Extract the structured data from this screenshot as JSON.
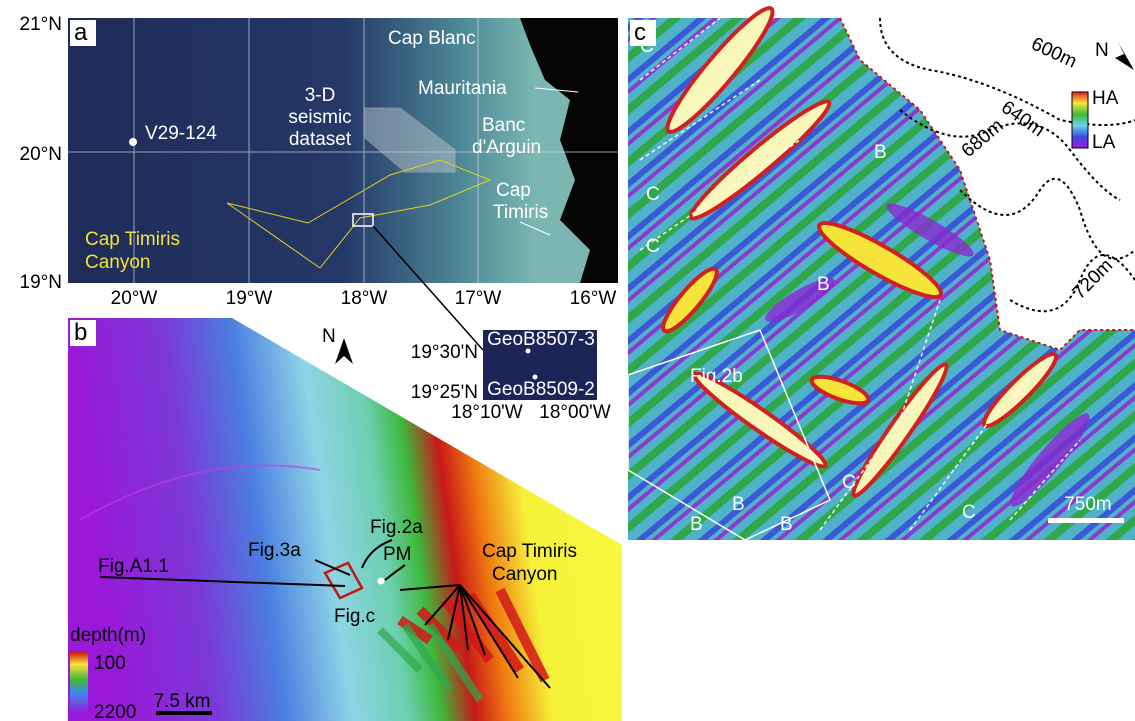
{
  "panel_a": {
    "label": "a",
    "lat_labels": [
      "21°N",
      "20°N",
      "19°N"
    ],
    "lon_labels": [
      "20°W",
      "19°W",
      "18°W",
      "17°W",
      "16°W"
    ],
    "core_site": "V29-124",
    "seismic_dataset": [
      "3-D",
      "seismic",
      "dataset"
    ],
    "cap_blanc": "Cap Blanc",
    "mauritania": "Mauritania",
    "banc_darguin": [
      "Banc",
      "d'Arguin"
    ],
    "cap_timiris": [
      "Cap",
      "Timiris"
    ],
    "canyon": [
      "Cap Timiris",
      "Canyon"
    ]
  },
  "inset": {
    "lat_labels": [
      "19°30'N",
      "19°25'N"
    ],
    "lon_labels": [
      "18°10'W",
      "18°00'W"
    ],
    "cores": [
      "GeoB8507-3",
      "GeoB8509-2"
    ]
  },
  "panel_b": {
    "label": "b",
    "north": "N",
    "fig_2a": "Fig.2a",
    "pm": "PM",
    "fig_3a": "Fig.3a",
    "fig_a1": "Fig.A1.1",
    "canyon": [
      "Cap Timiris",
      "Canyon"
    ],
    "fig_c": "Fig.c",
    "legend_title": "depth(m)",
    "legend_max": 100,
    "legend_min": 2200,
    "scale": "7.5 km"
  },
  "panel_c": {
    "label": "c",
    "contours": [
      "600m",
      "640m",
      "680m",
      "720m"
    ],
    "north": "N",
    "legend_high": "HA",
    "legend_low": "LA",
    "b_labels": [
      "B",
      "B",
      "B",
      "B",
      "B"
    ],
    "c_labels": [
      "C",
      "C",
      "C",
      "C",
      "C"
    ],
    "fig_2b": "Fig.2b",
    "scale": "750m"
  }
}
